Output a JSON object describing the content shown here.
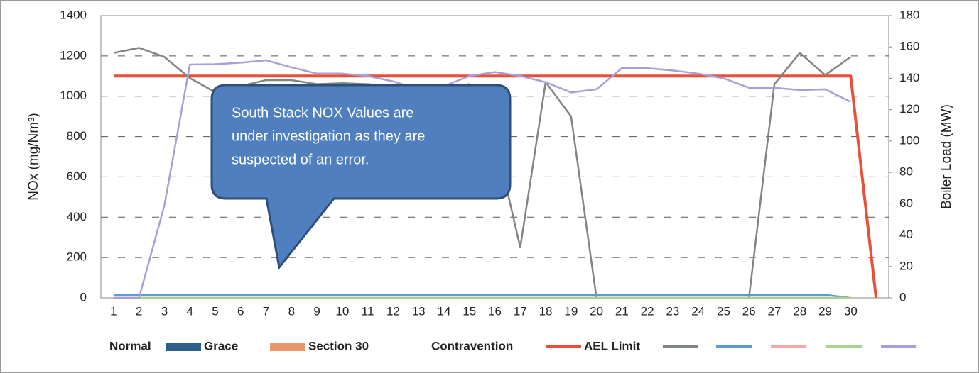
{
  "chart_data": {
    "type": "line",
    "annotation": [
      "South Stack NOX Values are",
      "under investigation as they are",
      "suspected of an error."
    ],
    "ylabel": "NOx (mg/Nm³)",
    "y2label": "Boiler Load (MW)",
    "categories": [
      "1",
      "2",
      "3",
      "4",
      "5",
      "6",
      "7",
      "8",
      "9",
      "10",
      "11",
      "12",
      "13",
      "14",
      "15",
      "16",
      "17",
      "18",
      "19",
      "20",
      "21",
      "22",
      "23",
      "24",
      "25",
      "26",
      "27",
      "28",
      "29",
      "30",
      null
    ],
    "ylim": [
      0,
      1400
    ],
    "yticks": [
      0,
      200,
      400,
      600,
      800,
      1000,
      1200,
      1400
    ],
    "y2lim": [
      0,
      180
    ],
    "y2ticks": [
      0,
      20,
      40,
      60,
      80,
      100,
      120,
      140,
      160,
      180
    ],
    "grid": true,
    "legend": "bottom",
    "series": [
      {
        "name": "Normal",
        "type": "bar",
        "color": "#ffffff",
        "values": [
          0,
          0,
          0,
          0,
          0,
          0,
          0,
          0,
          0,
          0,
          0,
          0,
          0,
          0,
          0,
          0,
          0,
          0,
          0,
          0,
          0,
          0,
          0,
          0,
          0,
          0,
          0,
          0,
          0,
          0,
          0
        ]
      },
      {
        "name": "Grace",
        "type": "bar",
        "color": "#2e5f8a",
        "values": [
          0,
          0,
          0,
          0,
          0,
          0,
          0,
          0,
          0,
          0,
          0,
          0,
          0,
          0,
          0,
          0,
          0,
          0,
          0,
          0,
          0,
          0,
          0,
          0,
          0,
          0,
          0,
          0,
          0,
          0,
          0
        ]
      },
      {
        "name": "Section 30",
        "type": "bar",
        "color": "#e8956a",
        "values": [
          0,
          0,
          0,
          0,
          0,
          0,
          0,
          0,
          0,
          0,
          0,
          0,
          0,
          0,
          0,
          0,
          0,
          0,
          0,
          0,
          0,
          0,
          0,
          0,
          0,
          0,
          0,
          0,
          0,
          0,
          0
        ]
      },
      {
        "name": "Contravention",
        "type": "bar",
        "color": "#ffffff",
        "values": [
          0,
          0,
          0,
          0,
          0,
          0,
          0,
          0,
          0,
          0,
          0,
          0,
          0,
          0,
          0,
          0,
          0,
          0,
          0,
          0,
          0,
          0,
          0,
          0,
          0,
          0,
          0,
          0,
          0,
          0,
          0
        ]
      },
      {
        "name": "AEL Limit",
        "color": "#e8503a",
        "values": [
          1100,
          1100,
          1100,
          1100,
          1100,
          1100,
          1100,
          1100,
          1100,
          1100,
          1100,
          1100,
          1100,
          1100,
          1100,
          1100,
          1100,
          1100,
          1100,
          1100,
          1100,
          1100,
          1100,
          1100,
          1100,
          1100,
          1100,
          1100,
          1100,
          1100,
          0
        ]
      },
      {
        "color": "#7f8580",
        "values": [
          1215,
          1240,
          1195,
          1090,
          1020,
          1050,
          1080,
          1080,
          1060,
          1065,
          1060,
          1050,
          1040,
          1040,
          1060,
          800,
          250,
          1070,
          900,
          0,
          0,
          0,
          0,
          0,
          0,
          0,
          1060,
          1215,
          1105,
          1195,
          null
        ]
      },
      {
        "color": "#5b9bd5",
        "values": [
          15,
          15,
          15,
          15,
          15,
          15,
          15,
          15,
          15,
          15,
          15,
          15,
          15,
          15,
          15,
          15,
          15,
          15,
          15,
          15,
          15,
          15,
          15,
          15,
          15,
          15,
          15,
          15,
          15,
          0,
          null
        ]
      },
      {
        "color": "#f4a6a0",
        "values": [
          0,
          0,
          0,
          0,
          0,
          0,
          0,
          0,
          0,
          0,
          0,
          0,
          0,
          0,
          0,
          0,
          0,
          0,
          0,
          0,
          0,
          0,
          0,
          0,
          0,
          0,
          0,
          0,
          0,
          0,
          null
        ]
      },
      {
        "color": "#a9d18e",
        "values": [
          0,
          0,
          0,
          0,
          0,
          0,
          0,
          0,
          0,
          0,
          0,
          0,
          0,
          0,
          0,
          0,
          0,
          0,
          0,
          0,
          0,
          0,
          0,
          0,
          0,
          0,
          0,
          0,
          0,
          0,
          null
        ]
      },
      {
        "color": "#a99fd8",
        "axis": "y2",
        "values": [
          0,
          0,
          59,
          148.8,
          149,
          150,
          151.5,
          147,
          143,
          143,
          141.5,
          138,
          133,
          135,
          141.5,
          144,
          141.5,
          137.5,
          131,
          133,
          146.5,
          146.5,
          145,
          143,
          140,
          134,
          134,
          132.5,
          133,
          125,
          null
        ]
      }
    ]
  }
}
